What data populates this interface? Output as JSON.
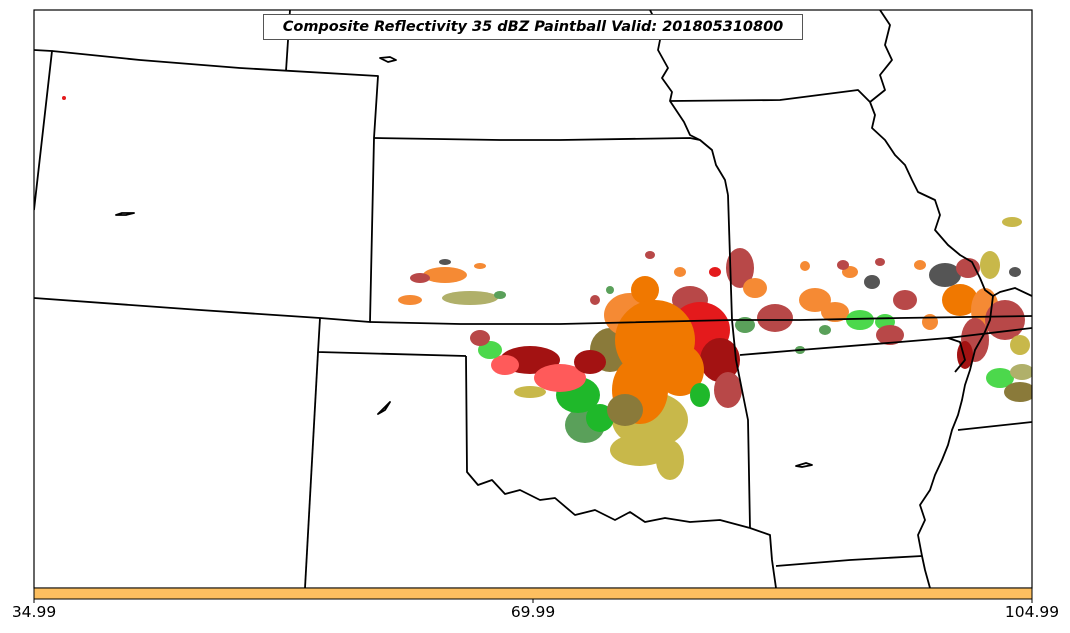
{
  "title": "Composite Reflectivity 35 dBZ Paintball Valid: 201805310800",
  "colorbar": {
    "color": "#fdbf60",
    "ticks": [
      "34.99",
      "69.99",
      "104.99"
    ]
  },
  "colors": {
    "frame": "#000000",
    "borders": "#000000",
    "background": "#ffffff"
  },
  "paintball_palette": [
    "#e41a1c",
    "#ff5a5a",
    "#b84848",
    "#a31212",
    "#f58a34",
    "#f07800",
    "#c8b84a",
    "#b0b06a",
    "#4cd84c",
    "#1fb82a",
    "#5aa05a",
    "#555555",
    "#8a7a3a"
  ]
}
